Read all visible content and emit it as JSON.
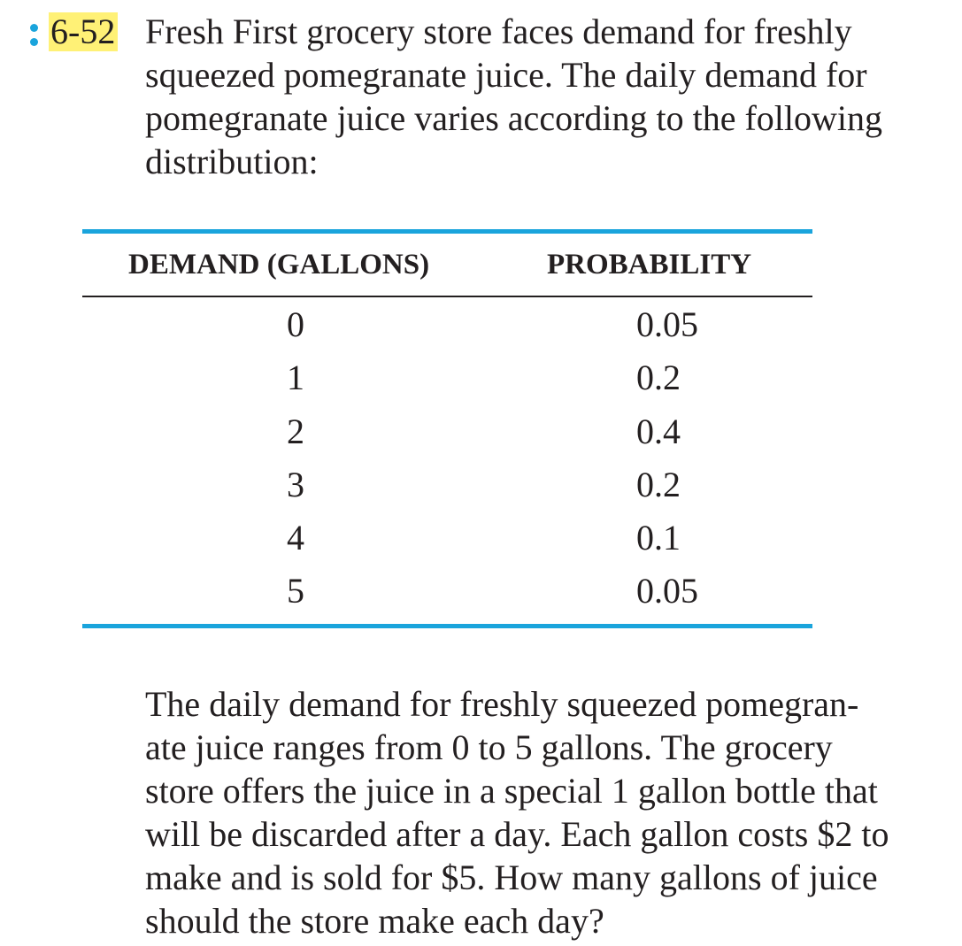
{
  "problem": {
    "number": "6-52",
    "intro_lines": [
      "Fresh First grocery store faces demand for freshly",
      "squeezed pomegranate juice. The daily demand for",
      "pomegranate juice varies according to the following",
      "distribution:"
    ],
    "question_lines": [
      "The daily demand for freshly squeezed pomegran-",
      "ate juice ranges from 0 to 5 gallons. The grocery",
      "store offers the juice in a special 1 gallon bottle that",
      "will be discarded after a day. Each gallon costs $2 to",
      "make and is sold for $5. How many gallons of juice",
      "should the store make each day?"
    ]
  },
  "table": {
    "headers": [
      "DEMAND (GALLONS)",
      "PROBABILITY"
    ],
    "rows": [
      [
        "0",
        "0.05"
      ],
      [
        "1",
        "0.2"
      ],
      [
        "2",
        "0.4"
      ],
      [
        "3",
        "0.2"
      ],
      [
        "4",
        "0.1"
      ],
      [
        "5",
        "0.05"
      ]
    ]
  },
  "colors": {
    "accent": "#1aa4dc",
    "highlight": "#fff176",
    "text": "#231f20"
  },
  "icons": {
    "marker": "two-dot-marker-icon"
  }
}
